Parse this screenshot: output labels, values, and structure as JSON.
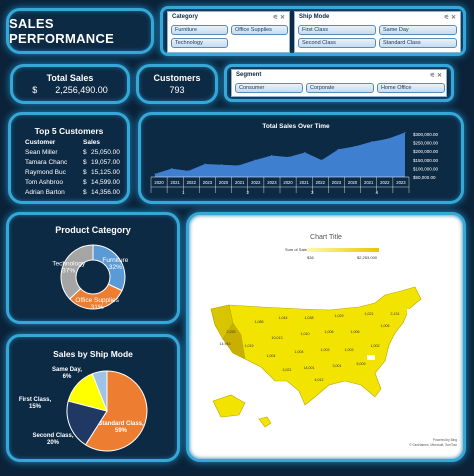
{
  "title": "SALES PERFORMANCE",
  "slicers": {
    "category": {
      "title": "Category",
      "items": [
        "Furniture",
        "Office Supplies",
        "Technology"
      ]
    },
    "ship_mode": {
      "title": "Ship Mode",
      "items": [
        "First Class",
        "Same Day",
        "Second Class",
        "Standard Class"
      ]
    },
    "segment": {
      "title": "Segment",
      "items": [
        "Consumer",
        "Corporate",
        "Home Office"
      ]
    }
  },
  "kpis": {
    "total_sales_label": "Total Sales",
    "total_sales_currency": "$",
    "total_sales_value": "2,256,490.00",
    "customers_label": "Customers",
    "customers_value": "793"
  },
  "top_customers": {
    "title": "Top 5 Customers",
    "headers": [
      "Customer",
      "Sales"
    ],
    "rows": [
      {
        "name": "Sean Miller",
        "cur": "$",
        "sales": "25,050.00"
      },
      {
        "name": "Tamara Chanc",
        "cur": "$",
        "sales": "19,057.00"
      },
      {
        "name": "Raymond Buc",
        "cur": "$",
        "sales": "15,125.00"
      },
      {
        "name": "Tom Ashbroo",
        "cur": "$",
        "sales": "14,599.00"
      },
      {
        "name": "Adrian Barton",
        "cur": "$",
        "sales": "14,356.00"
      }
    ]
  },
  "map_panel": {
    "title": "Chart Title",
    "legend_title": "Sum of Sales",
    "legend_min": "$36",
    "legend_max": "$2,253,000",
    "credit_line1": "Powered by Bing",
    "credit_line2": "© GeoNames, Microsoft, TomTom"
  },
  "chart_data": [
    {
      "type": "area",
      "title": "Total Sales Over Time",
      "x": [
        "2020",
        "2021",
        "2022",
        "2023",
        "2020",
        "2021",
        "2022",
        "2023",
        "2020",
        "2021",
        "2022",
        "2023",
        "2020",
        "2021",
        "2022",
        "2023"
      ],
      "quarters": [
        "1",
        "2",
        "3",
        "4"
      ],
      "values": [
        20000,
        55000,
        40000,
        85000,
        80000,
        75000,
        110000,
        140000,
        130000,
        160000,
        110000,
        180000,
        200000,
        230000,
        250000,
        290000
      ],
      "y_ticks": [
        "$300,000.00",
        "$250,000.00",
        "$200,000.00",
        "$150,000.00",
        "$100,000.00",
        "$50,000.00"
      ],
      "ylim": [
        0,
        300000
      ],
      "color": "#3f7fd0"
    },
    {
      "type": "pie",
      "subtype": "donut",
      "title": "Product Category",
      "slices": [
        {
          "label": "Furniture",
          "percent": "32%",
          "value": 32,
          "color": "#5b9bd5"
        },
        {
          "label": "Office Supplies",
          "percent": "31%",
          "value": 31,
          "color": "#ed7d31"
        },
        {
          "label": "Technology",
          "percent": "37%",
          "value": 37,
          "color": "#a5a5a5"
        }
      ]
    },
    {
      "type": "pie",
      "title": "Sales by Ship Mode",
      "slices": [
        {
          "label": "Standard Class,",
          "percent": "59%",
          "value": 59,
          "color": "#ed7d31"
        },
        {
          "label": "Second Class,",
          "percent": "20%",
          "value": 20,
          "color": "#1f3864"
        },
        {
          "label": "First Class,",
          "percent": "15%",
          "value": 15,
          "color": "#ffff00"
        },
        {
          "label": "Same Day,",
          "percent": "6%",
          "value": 6,
          "color": "#9dc3e6"
        }
      ]
    },
    {
      "type": "map",
      "title": "Chart Title",
      "state_values": [
        "2,253",
        "1,085",
        "1,044",
        "1,038",
        "1,029",
        "1,021",
        "1,019",
        "10,013",
        "1,010",
        "1,008",
        "1,006",
        "1,005",
        "1,004",
        "1,004",
        "1,003",
        "1,003",
        "1,002",
        "14,943",
        "14,001",
        "3,001",
        "5,009",
        "3,021",
        "4,012",
        "2,131"
      ]
    }
  ]
}
